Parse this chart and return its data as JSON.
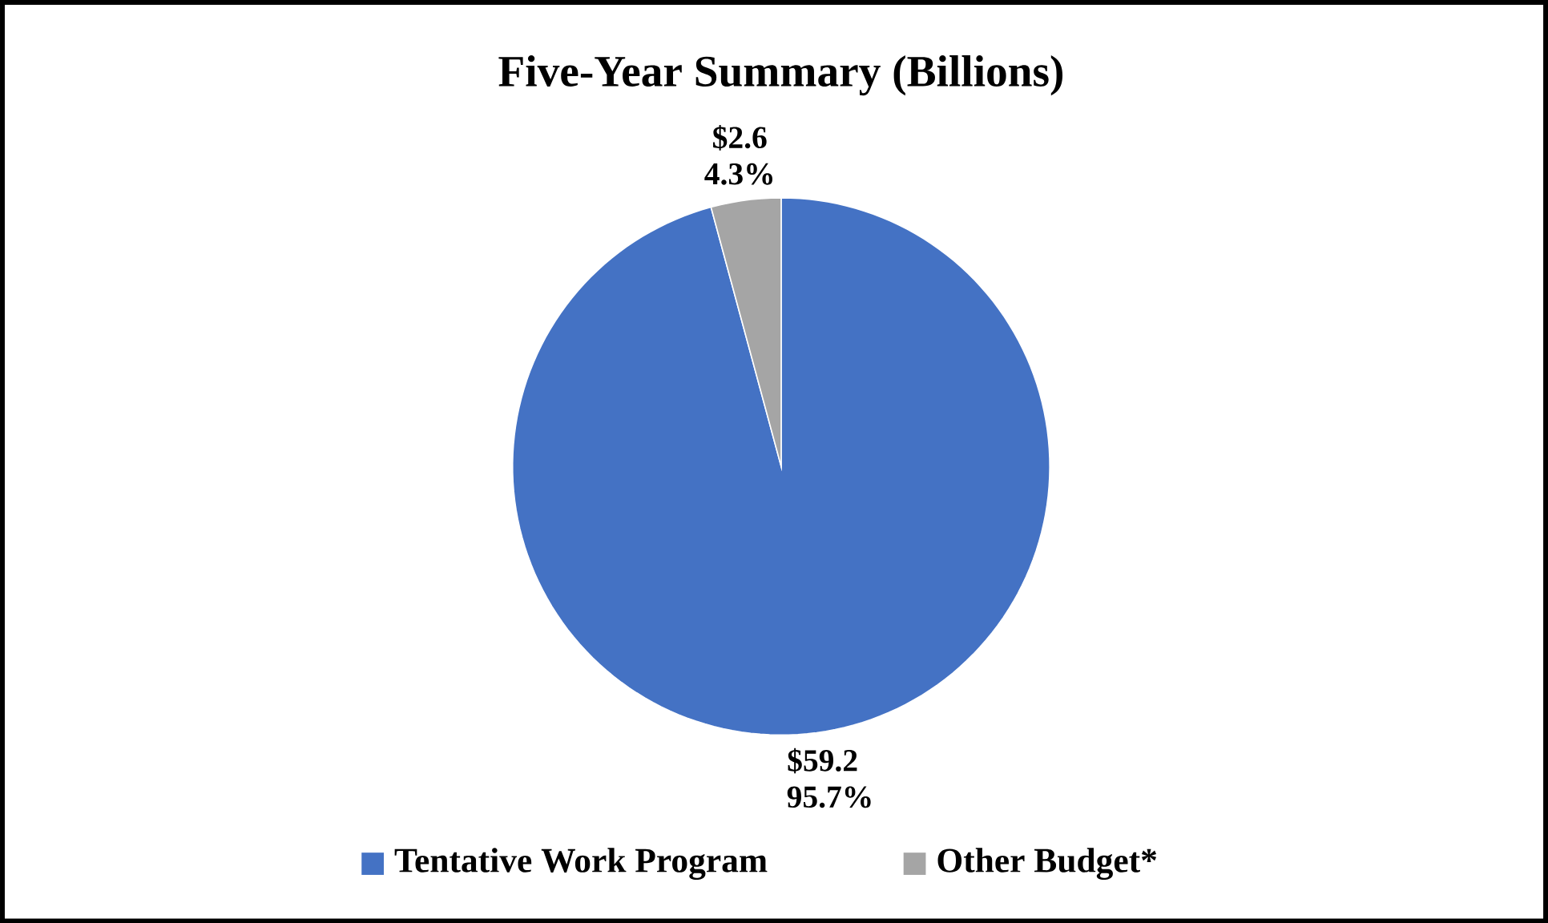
{
  "chart_data": {
    "type": "pie",
    "title": "Five-Year Summary (Billions)",
    "categories": [
      "Tentative Work Program",
      "Other Budget*"
    ],
    "values": [
      59.2,
      2.6
    ],
    "colors": [
      "#4472c4",
      "#a5a5a5"
    ],
    "value_labels": [
      "$59.2 95.7%",
      "$2.6 4.3%"
    ],
    "legend": "bottom"
  }
}
